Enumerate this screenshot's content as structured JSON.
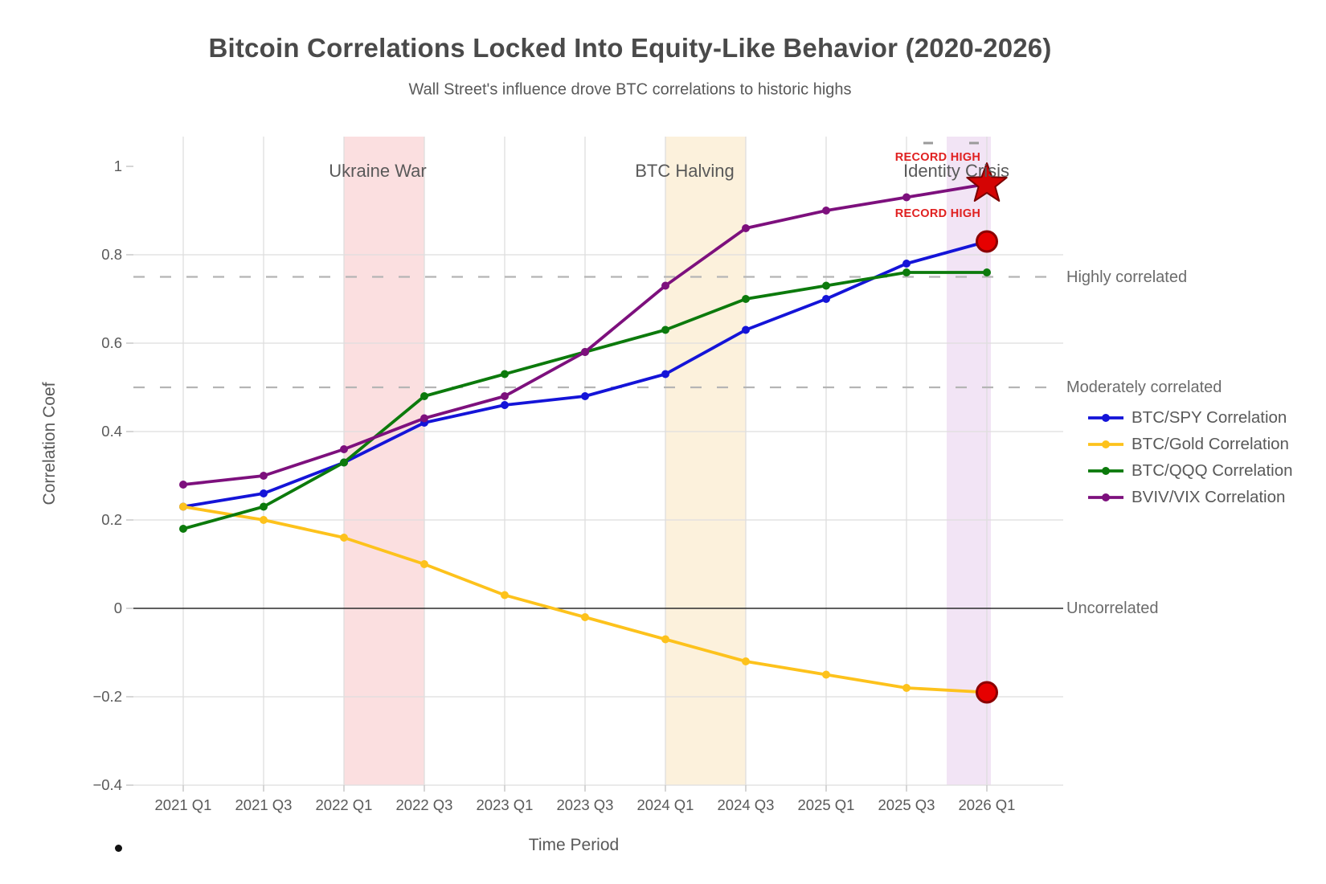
{
  "chart_data": {
    "type": "line",
    "title": "Bitcoin Correlations Locked Into Equity-Like Behavior (2020-2026)",
    "subtitle": "Wall Street's influence drove BTC correlations to historic highs",
    "xlabel": "Time Period",
    "ylabel": "Correlation Coef",
    "categories": [
      "2021 Q1",
      "2021 Q3",
      "2022 Q1",
      "2022 Q3",
      "2023 Q1",
      "2023 Q3",
      "2024 Q1",
      "2024 Q3",
      "2025 Q1",
      "2025 Q3",
      "2026 Q1"
    ],
    "series": [
      {
        "name": "BTC/SPY Correlation",
        "color": "#1414d8",
        "values": [
          0.23,
          0.26,
          0.33,
          0.42,
          0.46,
          0.48,
          0.53,
          0.63,
          0.7,
          0.78,
          0.83
        ]
      },
      {
        "name": "BTC/Gold Correlation",
        "color": "#fdc21c",
        "values": [
          0.23,
          0.2,
          0.16,
          0.1,
          0.03,
          -0.02,
          -0.07,
          -0.12,
          -0.15,
          -0.18,
          -0.19
        ]
      },
      {
        "name": "BTC/QQQ Correlation",
        "color": "#0c7a0c",
        "values": [
          0.18,
          0.23,
          0.33,
          0.48,
          0.53,
          0.58,
          0.63,
          0.7,
          0.73,
          0.76,
          0.76
        ]
      },
      {
        "name": "BVIV/VIX Correlation",
        "color": "#7d107d",
        "values": [
          0.28,
          0.3,
          0.36,
          0.43,
          0.48,
          0.58,
          0.73,
          0.86,
          0.9,
          0.93,
          0.96
        ]
      }
    ],
    "ylim": [
      -0.4,
      1.065
    ],
    "yticks": [
      1,
      0.8,
      0.6,
      0.4,
      0.2,
      0,
      -0.2,
      -0.4
    ],
    "ytick_labels": [
      "1",
      "0.8",
      "0.6",
      "0.4",
      "0.2",
      "0",
      "−0.2",
      "−0.4"
    ],
    "grid": true,
    "gridline_values": [
      0.8,
      0.6,
      0.4,
      0.2,
      -0.2,
      -0.4
    ],
    "legend_position": "right",
    "reference_lines": [
      {
        "value": 0.75,
        "style": "dashed",
        "label": "Highly correlated"
      },
      {
        "value": 0.5,
        "style": "dashed",
        "label": "Moderately correlated"
      },
      {
        "value": 0.0,
        "style": "solid",
        "label": "Uncorrelated"
      }
    ],
    "bands": [
      {
        "label": "Ukraine War",
        "start": "2022 Q1",
        "end": "2022 Q3",
        "start_idx": 2.0,
        "end_idx": 3.0,
        "color": "#fbdfe0"
      },
      {
        "label": "BTC Halving",
        "start": "2024 Q1",
        "end": "2024 Q3",
        "start_idx": 6.0,
        "end_idx": 7.0,
        "color": "#fcf1dc"
      },
      {
        "label": "Identity Crisis",
        "start": "2025 Q4",
        "end": "2026 Q1",
        "start_idx": 9.5,
        "end_idx": 10.05,
        "color": "#f2e4f5"
      }
    ],
    "record_markers": [
      {
        "label": "RECORD HIGH",
        "series": "BVIV/VIX Correlation",
        "category": "2026 Q1",
        "value": 0.96,
        "shape": "star",
        "fill": "#d40404",
        "edge": "#7a0000"
      },
      {
        "label": "RECORD HIGH",
        "series": "BTC/SPY Correlation",
        "category": "2026 Q1",
        "value": 0.83,
        "shape": "circle",
        "fill": "#e60000",
        "edge": "#8b0000"
      },
      {
        "label": "",
        "series": "BTC/Gold Correlation",
        "category": "2026 Q1",
        "value": -0.19,
        "shape": "circle",
        "fill": "#e60000",
        "edge": "#8b0000"
      }
    ]
  }
}
